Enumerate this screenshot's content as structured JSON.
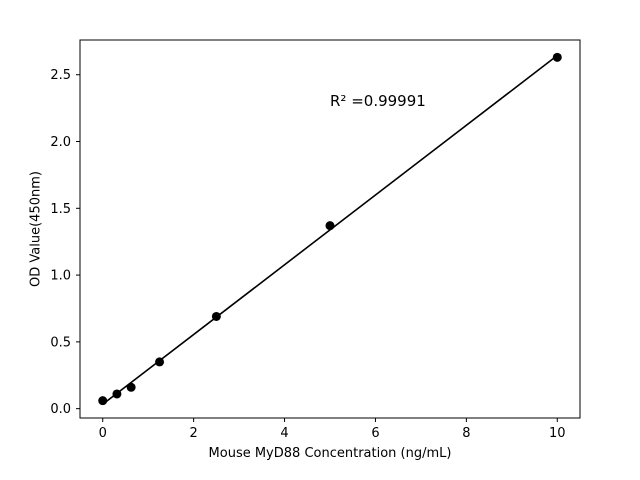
{
  "chart_data": {
    "type": "scatter",
    "title": "",
    "xlabel": "Mouse MyD88 Concentration (ng/mL)",
    "ylabel": "OD Value(450nm)",
    "annotation": "R² =0.99991",
    "x": [
      0,
      0.3125,
      0.625,
      1.25,
      2.5,
      5,
      10
    ],
    "y": [
      0.06,
      0.11,
      0.16,
      0.35,
      0.69,
      1.37,
      2.63
    ],
    "fit": {
      "slope": 0.2611,
      "intercept": 0.0328
    },
    "xlim": [
      -0.5,
      10.5
    ],
    "ylim": [
      -0.07,
      2.76
    ],
    "xticks": [
      0,
      2,
      4,
      6,
      8,
      10
    ],
    "yticks": [
      0.0,
      0.5,
      1.0,
      1.5,
      2.0,
      2.5
    ],
    "grid": false,
    "legend": "none",
    "background_color": "#ffffff",
    "marker_color": "#000000",
    "line_color": "#000000"
  }
}
